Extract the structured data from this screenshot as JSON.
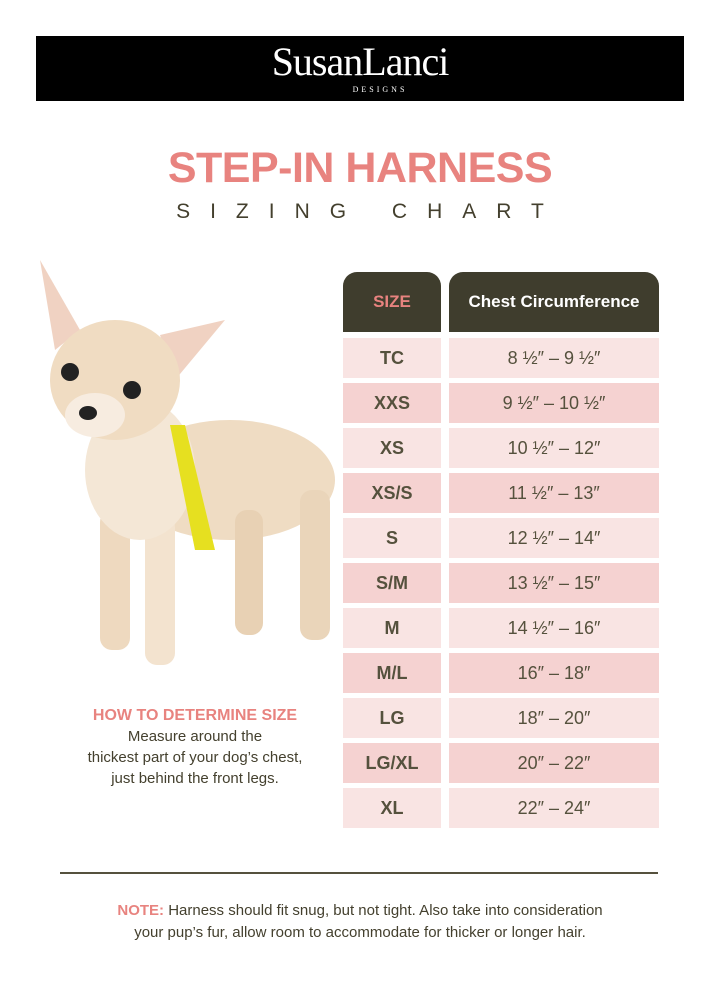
{
  "brand": {
    "name": "SusanLanci",
    "sub": "DESIGNS"
  },
  "title": "STEP-IN HARNESS",
  "subtitle": "SIZING CHART",
  "colors": {
    "accent": "#e8837f",
    "header_bg": "#3f3d2d",
    "row_light": "#f9e4e3",
    "row_dark": "#f5d2d1",
    "text": "#55513d"
  },
  "table": {
    "headers": [
      "SIZE",
      "Chest Circumference"
    ],
    "rows": [
      [
        "TC",
        "8 ½″ – 9 ½″"
      ],
      [
        "XXS",
        "9 ½″ – 10 ½″"
      ],
      [
        "XS",
        "10 ½″ – 12″"
      ],
      [
        "XS/S",
        "11 ½″ – 13″"
      ],
      [
        "S",
        "12 ½″ – 14″"
      ],
      [
        "S/M",
        "13 ½″ – 15″"
      ],
      [
        "M",
        "14 ½″ – 16″"
      ],
      [
        "M/L",
        "16″ – 18″"
      ],
      [
        "LG",
        "18″ – 20″"
      ],
      [
        "LG/XL",
        "20″ – 22″"
      ],
      [
        "XL",
        "22″ – 24″"
      ]
    ]
  },
  "howto": {
    "title": "HOW TO DETERMINE SIZE",
    "lines": [
      "Measure around the",
      "thickest part of your dog’s chest,",
      "just behind the front legs."
    ]
  },
  "note": {
    "label": "NOTE:",
    "line1": " Harness should fit snug, but not tight. Also take into consideration",
    "line2": "your pup’s fur, allow room to accommodate for thicker or longer hair."
  }
}
